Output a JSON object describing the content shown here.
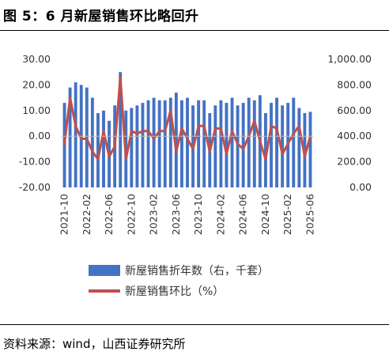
{
  "figure": {
    "title": "图 5：6 月新屋销售环比略回升",
    "source": "资料来源：wind，山西证券研究所"
  },
  "chart_data": {
    "type": "bar+line",
    "x": [
      "2021-10",
      "2021-11",
      "2021-12",
      "2022-01",
      "2022-02",
      "2022-03",
      "2022-04",
      "2022-05",
      "2022-06",
      "2022-07",
      "2022-08",
      "2022-09",
      "2022-10",
      "2022-11",
      "2022-12",
      "2023-01",
      "2023-02",
      "2023-03",
      "2023-04",
      "2023-05",
      "2023-06",
      "2023-07",
      "2023-08",
      "2023-09",
      "2023-10",
      "2023-11",
      "2023-12",
      "2024-01",
      "2024-02",
      "2024-03",
      "2024-04",
      "2024-05",
      "2024-06",
      "2024-07",
      "2024-08",
      "2024-09",
      "2024-10",
      "2024-11",
      "2024-12",
      "2025-01",
      "2025-02",
      "2025-03",
      "2025-04",
      "2025-05",
      "2025-06"
    ],
    "x_tick_labels": [
      "2021-10",
      "2022-02",
      "2022-06",
      "2022-10",
      "2023-02",
      "2023-06",
      "2023-10",
      "2024-02",
      "2024-06",
      "2024-10",
      "2025-02",
      "2025-06"
    ],
    "series": [
      {
        "name": "新屋销售折年数（右，千套）",
        "type": "bar",
        "axis": "right",
        "color": "#4472C4",
        "values": [
          660,
          780,
          820,
          800,
          780,
          700,
          580,
          600,
          520,
          640,
          900,
          600,
          620,
          640,
          660,
          680,
          700,
          680,
          680,
          700,
          740,
          680,
          700,
          640,
          680,
          680,
          580,
          640,
          680,
          660,
          700,
          640,
          660,
          700,
          680,
          720,
          580,
          660,
          700,
          640,
          660,
          700,
          620,
          580,
          590
        ]
      },
      {
        "name": "新屋销售环比（%）",
        "type": "line",
        "axis": "left",
        "color": "#C0504D",
        "values": [
          -3,
          15,
          4,
          -1,
          -1,
          -6,
          -9,
          2,
          -8,
          -4,
          23,
          -9,
          2,
          1,
          2,
          2,
          -1,
          2,
          2,
          10,
          -6,
          3,
          -1,
          -5,
          4,
          4,
          -6,
          3,
          3,
          -7,
          2,
          -3,
          -5,
          0,
          6,
          -2,
          -9,
          4,
          3,
          -7,
          -3,
          1,
          4,
          -8,
          0
        ]
      }
    ],
    "y_left": {
      "min": -20,
      "max": 30,
      "ticks": [
        "30.00",
        "20.00",
        "10.00",
        "0.00",
        "-10.00",
        "-20.00"
      ]
    },
    "y_right": {
      "min": 0,
      "max": 1000,
      "ticks": [
        "1,000.00",
        "800.00",
        "600.00",
        "400.00",
        "200.00",
        "0.00"
      ]
    },
    "grid": false,
    "legend_position": "bottom"
  }
}
